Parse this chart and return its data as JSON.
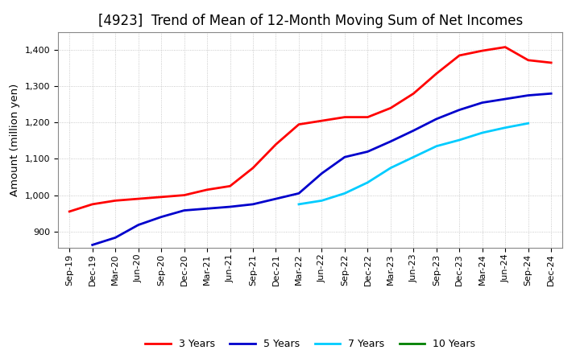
{
  "title": "[4923]  Trend of Mean of 12-Month Moving Sum of Net Incomes",
  "ylabel": "Amount (million yen)",
  "background_color": "#ffffff",
  "plot_bg_color": "#ffffff",
  "grid_color": "#aaaaaa",
  "ylim": [
    855,
    1450
  ],
  "yticks": [
    900,
    1000,
    1100,
    1200,
    1300,
    1400
  ],
  "series": {
    "3years": {
      "color": "#ff0000",
      "label": "3 Years",
      "x": [
        "Sep-19",
        "Dec-19",
        "Mar-20",
        "Jun-20",
        "Sep-20",
        "Dec-20",
        "Mar-21",
        "Jun-21",
        "Sep-21",
        "Dec-21",
        "Mar-22",
        "Jun-22",
        "Sep-22",
        "Dec-22",
        "Mar-23",
        "Jun-23",
        "Sep-23",
        "Dec-23",
        "Mar-24",
        "Jun-24",
        "Sep-24",
        "Dec-24"
      ],
      "y": [
        955,
        975,
        985,
        990,
        995,
        1000,
        1015,
        1025,
        1075,
        1140,
        1195,
        1205,
        1215,
        1215,
        1240,
        1280,
        1335,
        1385,
        1398,
        1408,
        1372,
        1365
      ]
    },
    "5years": {
      "color": "#0000cc",
      "label": "5 Years",
      "x": [
        "Sep-19",
        "Dec-19",
        "Mar-20",
        "Jun-20",
        "Sep-20",
        "Dec-20",
        "Mar-21",
        "Jun-21",
        "Sep-21",
        "Dec-21",
        "Mar-22",
        "Jun-22",
        "Sep-22",
        "Dec-22",
        "Mar-23",
        "Jun-23",
        "Sep-23",
        "Dec-23",
        "Mar-24",
        "Jun-24",
        "Sep-24",
        "Dec-24"
      ],
      "y": [
        null,
        863,
        883,
        918,
        940,
        958,
        963,
        968,
        975,
        990,
        1005,
        1060,
        1105,
        1120,
        1148,
        1178,
        1210,
        1235,
        1255,
        1265,
        1275,
        1280
      ]
    },
    "7years": {
      "color": "#00ccff",
      "label": "7 Years",
      "x": [
        "Mar-22",
        "Jun-22",
        "Sep-22",
        "Dec-22",
        "Mar-23",
        "Jun-23",
        "Sep-23",
        "Dec-23",
        "Mar-24",
        "Jun-24",
        "Sep-24"
      ],
      "y": [
        975,
        985,
        1005,
        1035,
        1075,
        1105,
        1135,
        1152,
        1172,
        1186,
        1198
      ]
    },
    "10years": {
      "color": "#008000",
      "label": "10 Years",
      "x": [],
      "y": []
    }
  },
  "xtick_labels": [
    "Sep-19",
    "Dec-19",
    "Mar-20",
    "Jun-20",
    "Sep-20",
    "Dec-20",
    "Mar-21",
    "Jun-21",
    "Sep-21",
    "Dec-21",
    "Mar-22",
    "Jun-22",
    "Sep-22",
    "Dec-22",
    "Mar-23",
    "Jun-23",
    "Sep-23",
    "Dec-23",
    "Mar-24",
    "Jun-24",
    "Sep-24",
    "Dec-24"
  ],
  "title_fontsize": 12,
  "tick_fontsize": 8,
  "ylabel_fontsize": 9.5,
  "legend_fontsize": 9,
  "linewidth": 2.0
}
